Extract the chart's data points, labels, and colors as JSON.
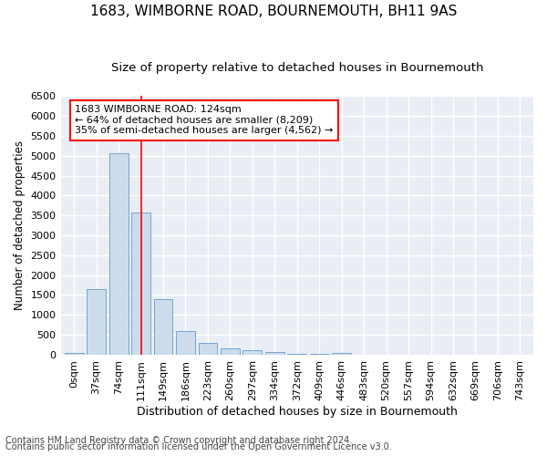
{
  "title1": "1683, WIMBORNE ROAD, BOURNEMOUTH, BH11 9AS",
  "title2": "Size of property relative to detached houses in Bournemouth",
  "xlabel": "Distribution of detached houses by size in Bournemouth",
  "ylabel": "Number of detached properties",
  "bar_labels": [
    "0sqm",
    "37sqm",
    "74sqm",
    "111sqm",
    "149sqm",
    "186sqm",
    "223sqm",
    "260sqm",
    "297sqm",
    "334sqm",
    "372sqm",
    "409sqm",
    "446sqm",
    "483sqm",
    "520sqm",
    "557sqm",
    "594sqm",
    "632sqm",
    "669sqm",
    "706sqm",
    "743sqm"
  ],
  "bar_values": [
    55,
    1650,
    5060,
    3580,
    1390,
    600,
    290,
    150,
    110,
    75,
    30,
    20,
    50,
    0,
    0,
    0,
    0,
    0,
    0,
    0,
    0
  ],
  "bar_color": "#ccdcec",
  "bar_edge_color": "#6699cc",
  "vline_x": 3,
  "vline_color": "red",
  "annotation_text": "1683 WIMBORNE ROAD: 124sqm\n← 64% of detached houses are smaller (8,209)\n35% of semi-detached houses are larger (4,562) →",
  "annotation_box_facecolor": "white",
  "annotation_box_edgecolor": "red",
  "ylim": [
    0,
    6500
  ],
  "yticks": [
    0,
    500,
    1000,
    1500,
    2000,
    2500,
    3000,
    3500,
    4000,
    4500,
    5000,
    5500,
    6000,
    6500
  ],
  "footnote1": "Contains HM Land Registry data © Crown copyright and database right 2024.",
  "footnote2": "Contains public sector information licensed under the Open Government Licence v3.0.",
  "bg_color": "#ffffff",
  "plot_bg_color": "#e8eef4",
  "grid_color": "#ffffff",
  "title1_fontsize": 11,
  "title2_fontsize": 9.5,
  "xlabel_fontsize": 9,
  "ylabel_fontsize": 8.5,
  "tick_fontsize": 8,
  "footnote_fontsize": 7,
  "annotation_fontsize": 8
}
